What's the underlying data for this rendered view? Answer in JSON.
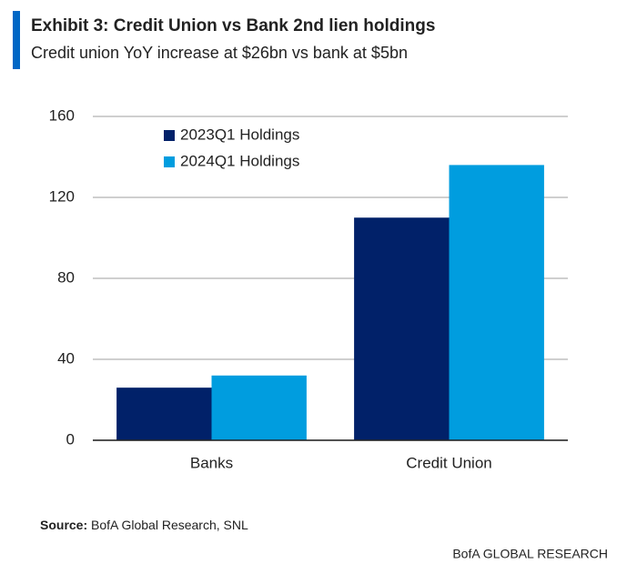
{
  "chart_data": {
    "type": "bar",
    "title": "Exhibit 3: Credit Union vs Bank 2nd lien holdings",
    "subtitle": "Credit union YoY increase at $26bn vs bank at $5bn",
    "categories": [
      "Banks",
      "Credit Union"
    ],
    "series": [
      {
        "name": "2023Q1 Holdings",
        "color": "#012169",
        "values": [
          26,
          110
        ]
      },
      {
        "name": "2024Q1 Holdings",
        "color": "#009ddf",
        "values": [
          32,
          136
        ]
      }
    ],
    "ylim": [
      0,
      160
    ],
    "yticks": [
      0,
      40,
      80,
      120,
      160
    ],
    "grid": true,
    "legend": "top-left",
    "source_label": "Source:",
    "source": "BofA Global Research, SNL",
    "footer": "BofA GLOBAL RESEARCH"
  }
}
